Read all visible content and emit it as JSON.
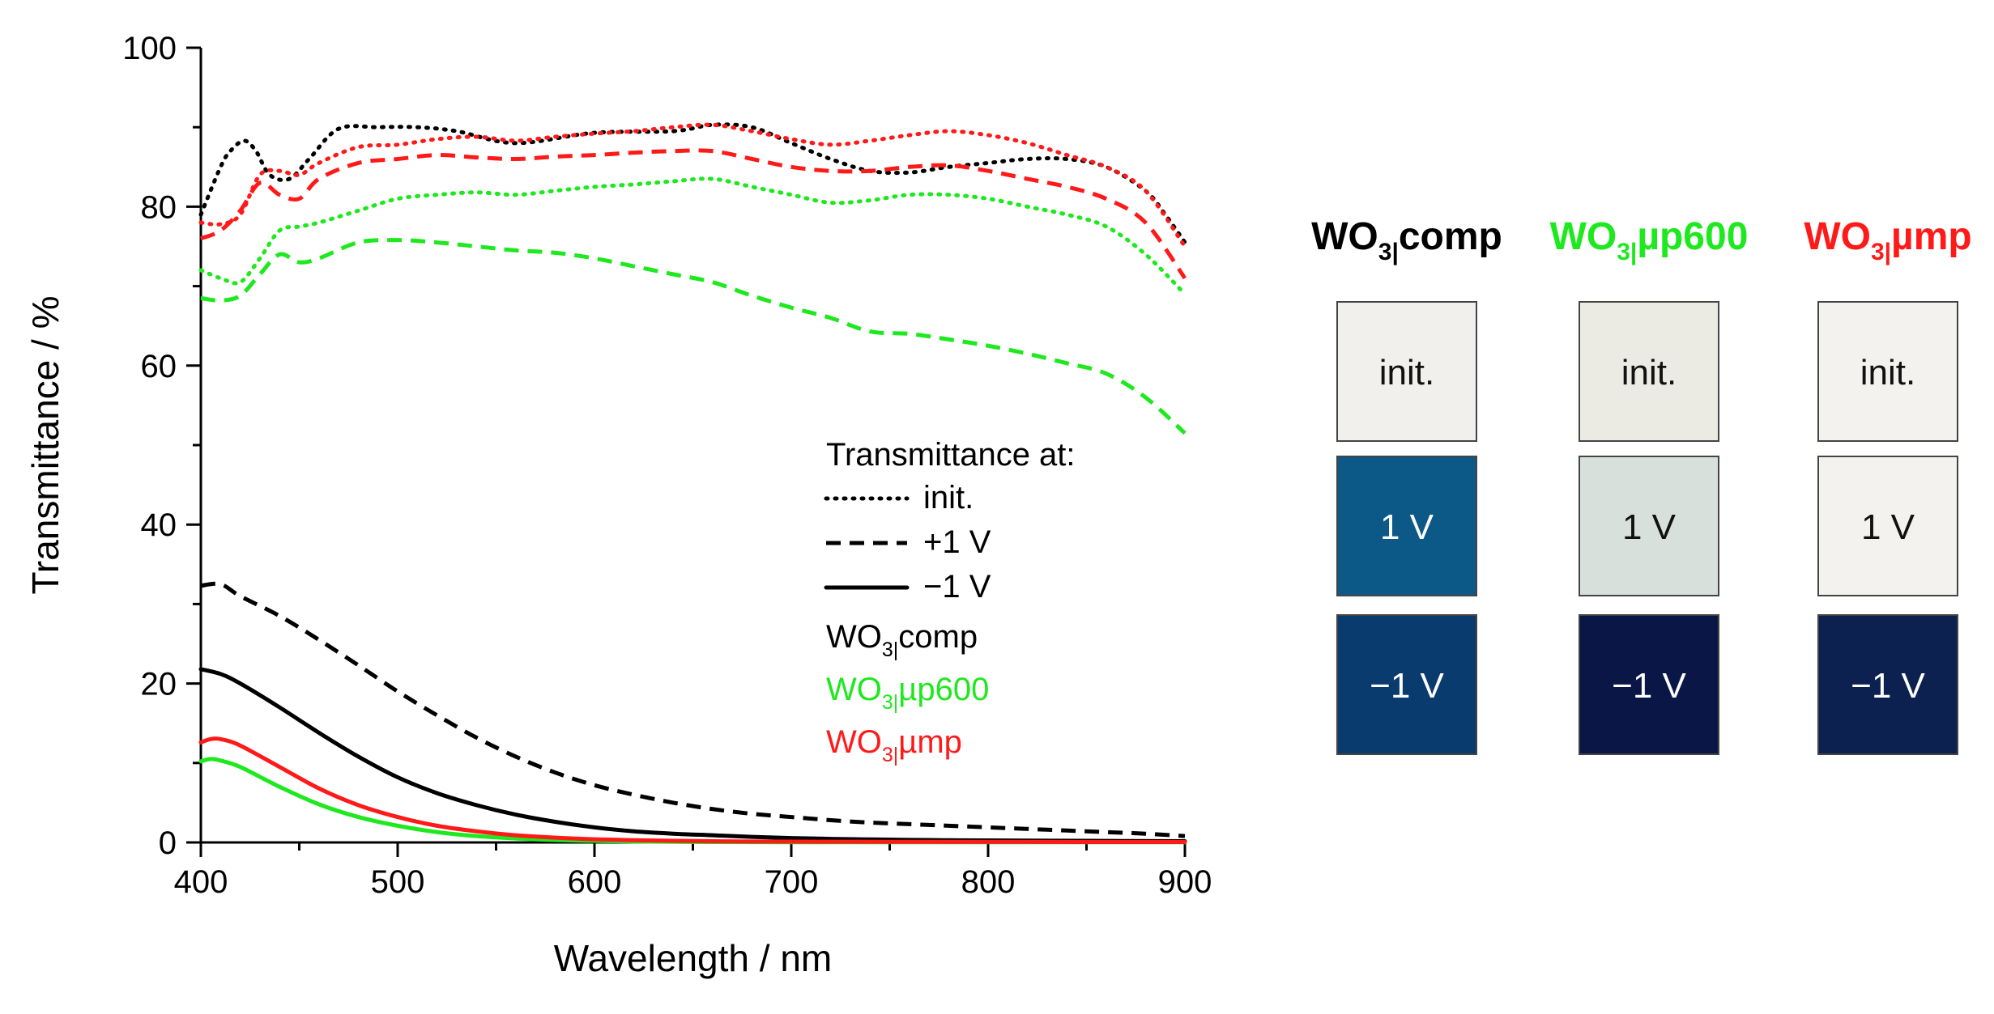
{
  "chart_data": {
    "type": "line",
    "xlabel": "Wavelength / nm",
    "ylabel": "Transmittance / %",
    "xlim": [
      400,
      900
    ],
    "ylim": [
      0,
      100
    ],
    "x_ticks": [
      400,
      500,
      600,
      700,
      800,
      900
    ],
    "y_ticks": [
      0,
      20,
      40,
      60,
      80,
      100
    ],
    "x_tick_labels": [
      "400",
      "500",
      "600",
      "700",
      "800",
      "900"
    ],
    "y_tick_labels": [
      "0",
      "20",
      "40",
      "60",
      "80",
      "100"
    ],
    "legend": {
      "title": "Transmittance at:",
      "styles": [
        {
          "label": "init.",
          "dash": "dotted"
        },
        {
          "label": "+1 V",
          "dash": "dashed"
        },
        {
          "label": "−1 V",
          "dash": "solid"
        }
      ],
      "samples": [
        {
          "base": "WO",
          "sub": "3|",
          "suffix": "comp",
          "color": "#000000"
        },
        {
          "base": "WO",
          "sub": "3|",
          "suffix": "µp600",
          "color": "#1ee81e"
        },
        {
          "base": "WO",
          "sub": "3|",
          "suffix": "µmp",
          "color": "#ff1a1a"
        }
      ]
    },
    "series": [
      {
        "name": "WO3|comp init.",
        "sample": "comp",
        "state": "init.",
        "color": "#000000",
        "dash": "dotted",
        "x": [
          400,
          410,
          415,
          422,
          428,
          435,
          445,
          455,
          470,
          490,
          510,
          530,
          560,
          600,
          640,
          660,
          680,
          700,
          720,
          740,
          760,
          780,
          800,
          820,
          840,
          860,
          880,
          890,
          900
        ],
        "y": [
          79,
          85,
          87,
          88.3,
          87,
          84,
          83.5,
          86,
          89.8,
          90,
          90,
          89.5,
          88,
          89.3,
          89.5,
          90.3,
          90,
          88,
          86,
          84.5,
          84.3,
          85,
          85.5,
          86,
          86,
          85,
          82,
          79,
          75.5
        ]
      },
      {
        "name": "WO3|comp +1 V",
        "sample": "comp",
        "state": "+1 V",
        "color": "#000000",
        "dash": "dashed",
        "x": [
          400,
          410,
          420,
          440,
          460,
          480,
          500,
          520,
          540,
          560,
          580,
          600,
          620,
          640,
          660,
          680,
          700,
          720,
          740,
          760,
          780,
          800,
          820,
          840,
          860,
          880,
          900
        ],
        "y": [
          32.3,
          32.5,
          31,
          28.5,
          25.5,
          22.3,
          19,
          16,
          13.2,
          10.8,
          8.8,
          7.2,
          6,
          5,
          4.2,
          3.6,
          3.2,
          2.8,
          2.5,
          2.3,
          2.1,
          1.9,
          1.7,
          1.5,
          1.3,
          1.1,
          0.8
        ]
      },
      {
        "name": "WO3|comp −1 V",
        "sample": "comp",
        "state": "−1 V",
        "color": "#000000",
        "dash": "solid",
        "x": [
          400,
          410,
          420,
          440,
          460,
          480,
          500,
          520,
          540,
          560,
          580,
          600,
          620,
          640,
          660,
          680,
          700,
          720,
          740,
          760,
          780,
          800,
          850,
          900
        ],
        "y": [
          21.8,
          21.2,
          20,
          17,
          13.8,
          10.8,
          8.2,
          6.2,
          4.7,
          3.5,
          2.6,
          1.9,
          1.4,
          1.1,
          0.9,
          0.7,
          0.55,
          0.45,
          0.38,
          0.32,
          0.28,
          0.25,
          0.2,
          0.15
        ]
      },
      {
        "name": "WO3|µp600 init.",
        "sample": "µp600",
        "state": "init.",
        "color": "#1ee81e",
        "dash": "dotted",
        "x": [
          400,
          410,
          420,
          430,
          440,
          450,
          460,
          480,
          500,
          520,
          540,
          560,
          580,
          600,
          620,
          640,
          660,
          680,
          700,
          720,
          740,
          760,
          780,
          800,
          820,
          840,
          860,
          880,
          900
        ],
        "y": [
          72,
          71,
          70.5,
          73.5,
          77,
          77.5,
          78,
          79.5,
          81,
          81.5,
          81.8,
          81.5,
          82,
          82.5,
          82.8,
          83.2,
          83.5,
          82.5,
          81.5,
          80.5,
          80.8,
          81.5,
          81.5,
          81,
          80,
          79,
          77.5,
          74,
          69
        ]
      },
      {
        "name": "WO3|µp600 +1 V",
        "sample": "µp600",
        "state": "+1 V",
        "color": "#1ee81e",
        "dash": "dashed",
        "x": [
          400,
          410,
          420,
          430,
          440,
          450,
          460,
          480,
          500,
          520,
          540,
          560,
          580,
          600,
          620,
          640,
          660,
          680,
          700,
          720,
          740,
          760,
          780,
          800,
          820,
          840,
          860,
          880,
          900
        ],
        "y": [
          68.5,
          68.2,
          68.8,
          71.5,
          74,
          73,
          73.5,
          75.5,
          75.8,
          75.5,
          75,
          74.5,
          74.2,
          73.5,
          72.5,
          71.5,
          70.5,
          68.8,
          67.3,
          66,
          64.3,
          64,
          63.3,
          62.5,
          61.5,
          60.3,
          59,
          56,
          51.5
        ]
      },
      {
        "name": "WO3|µp600 −1 V",
        "sample": "µp600",
        "state": "−1 V",
        "color": "#1ee81e",
        "dash": "solid",
        "x": [
          400,
          405,
          410,
          420,
          440,
          460,
          480,
          500,
          520,
          540,
          560,
          580,
          600,
          620,
          640,
          660,
          700,
          750,
          800,
          900
        ],
        "y": [
          10.2,
          10.5,
          10.3,
          9.5,
          7,
          4.8,
          3.2,
          2.1,
          1.3,
          0.8,
          0.5,
          0.3,
          0.2,
          0.12,
          0.08,
          0.05,
          0.03,
          0.02,
          0.02,
          0.02
        ]
      },
      {
        "name": "WO3|µmp init.",
        "sample": "µmp",
        "state": "init.",
        "color": "#ff1a1a",
        "dash": "dotted",
        "x": [
          400,
          410,
          420,
          430,
          440,
          450,
          460,
          480,
          500,
          520,
          540,
          560,
          580,
          600,
          620,
          640,
          660,
          680,
          700,
          720,
          740,
          760,
          780,
          800,
          820,
          840,
          860,
          880,
          900
        ],
        "y": [
          78,
          77.8,
          79,
          84,
          84.5,
          84,
          85.5,
          87.5,
          87.8,
          88.5,
          88.8,
          88.3,
          88.8,
          89.2,
          89.5,
          90,
          90.3,
          89.5,
          88.5,
          87.8,
          88.3,
          89,
          89.5,
          89,
          88,
          86.5,
          85,
          82,
          75
        ]
      },
      {
        "name": "WO3|µmp +1 V",
        "sample": "µmp",
        "state": "+1 V",
        "color": "#ff1a1a",
        "dash": "dashed",
        "x": [
          400,
          410,
          420,
          430,
          440,
          450,
          460,
          480,
          500,
          520,
          540,
          560,
          580,
          600,
          620,
          640,
          660,
          680,
          700,
          720,
          740,
          760,
          780,
          800,
          820,
          840,
          860,
          880,
          900
        ],
        "y": [
          76,
          77,
          79.5,
          83,
          81.5,
          81,
          83.5,
          85.5,
          86,
          86.5,
          86.2,
          86,
          86.3,
          86.5,
          86.8,
          87,
          87,
          86,
          85,
          84.5,
          84.5,
          85,
          85.2,
          84.5,
          83.5,
          82.5,
          81,
          78,
          71
        ]
      },
      {
        "name": "WO3|µmp −1 V",
        "sample": "µmp",
        "state": "−1 V",
        "color": "#ff1a1a",
        "dash": "solid",
        "x": [
          400,
          405,
          410,
          420,
          440,
          460,
          480,
          500,
          520,
          540,
          560,
          580,
          600,
          620,
          640,
          660,
          680,
          700,
          750,
          800,
          900
        ],
        "y": [
          12.6,
          13,
          13,
          12.2,
          9.5,
          6.8,
          4.7,
          3.2,
          2.1,
          1.4,
          0.9,
          0.6,
          0.4,
          0.28,
          0.2,
          0.15,
          0.12,
          0.1,
          0.08,
          0.06,
          0.05
        ]
      }
    ]
  },
  "photo_panel": {
    "columns": [
      {
        "base": "WO",
        "sub": "3|",
        "suffix": "comp",
        "color": "#000000",
        "tiles": [
          {
            "label": "init.",
            "fill": "#f2f0ec",
            "text_color": "#111111"
          },
          {
            "label": "1 V",
            "fill": "#0c5887",
            "text_color": "#ffffff"
          },
          {
            "label": "−1 V",
            "fill": "#0a3b6e",
            "text_color": "#ffffff"
          }
        ]
      },
      {
        "base": "WO",
        "sub": "3|",
        "suffix": "µp600",
        "color": "#1ee81e",
        "tiles": [
          {
            "label": "init.",
            "fill": "#ebebe4",
            "text_color": "#111111"
          },
          {
            "label": "1 V",
            "fill": "#d8e0dc",
            "text_color": "#111111"
          },
          {
            "label": "−1 V",
            "fill": "#0a1646",
            "text_color": "#ffffff"
          }
        ]
      },
      {
        "base": "WO",
        "sub": "3|",
        "suffix": "µmp",
        "color": "#ff1a1a",
        "tiles": [
          {
            "label": "init.",
            "fill": "#f4f2ee",
            "text_color": "#111111"
          },
          {
            "label": "1 V",
            "fill": "#f3f2ee",
            "text_color": "#111111"
          },
          {
            "label": "−1 V",
            "fill": "#0c2150",
            "text_color": "#ffffff"
          }
        ]
      }
    ]
  }
}
